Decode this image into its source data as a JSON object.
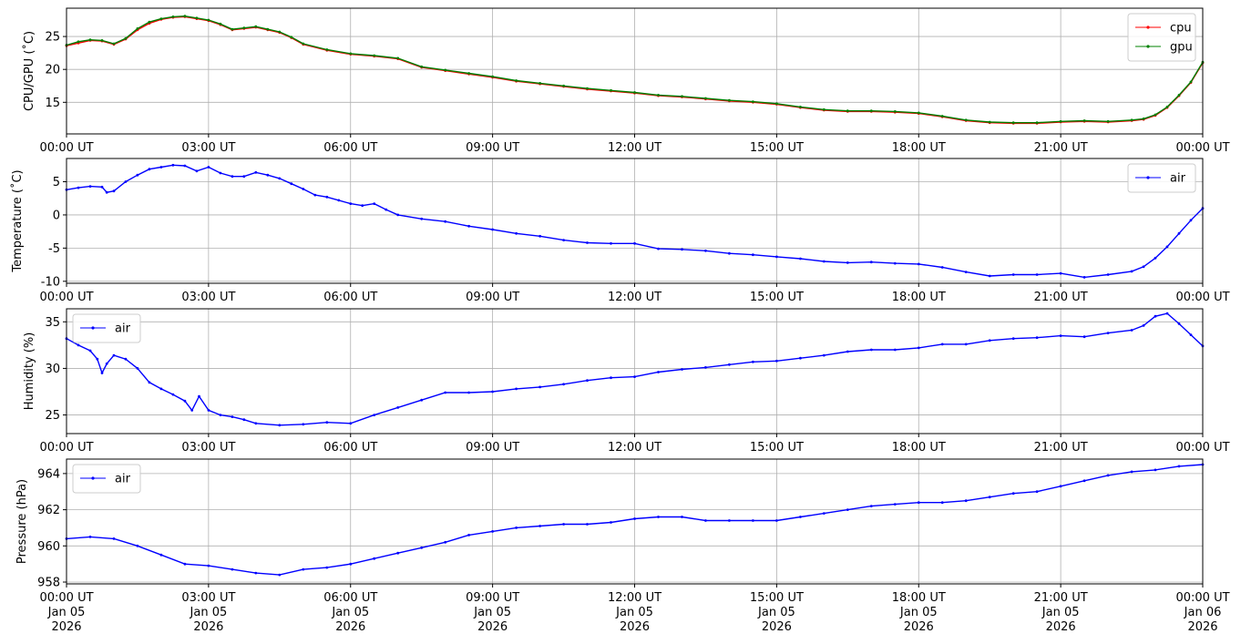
{
  "x_ticks": [
    "00:00 UT",
    "03:00 UT",
    "06:00 UT",
    "09:00 UT",
    "12:00 UT",
    "15:00 UT",
    "18:00 UT",
    "21:00 UT",
    "00:00 UT"
  ],
  "x_ticks_dates": [
    "Jan 05",
    "Jan 05",
    "Jan 05",
    "Jan 05",
    "Jan 05",
    "Jan 05",
    "Jan 05",
    "Jan 05",
    "Jan 06"
  ],
  "x_ticks_years": [
    "2026",
    "2026",
    "2026",
    "2026",
    "2026",
    "2026",
    "2026",
    "2026",
    "2026"
  ],
  "colors": {
    "cpu": "#ff0000",
    "gpu": "#008000",
    "air": "#0000ff",
    "grid": "#b0b0b0"
  },
  "chart_data": [
    {
      "type": "line",
      "xlabel": "",
      "ylabel": "CPU/GPU (˚C)",
      "x_range_hours": [
        0,
        24
      ],
      "ylim": [
        10.2,
        29.3
      ],
      "yticks": [
        15,
        20,
        25
      ],
      "grid": true,
      "legend": "top-right",
      "series": [
        {
          "name": "cpu",
          "color": "#ff0000",
          "x": [
            0,
            0.25,
            0.5,
            0.75,
            1.0,
            1.25,
            1.5,
            1.75,
            2.0,
            2.25,
            2.5,
            2.75,
            3.0,
            3.25,
            3.5,
            3.75,
            4.0,
            4.25,
            4.5,
            4.75,
            5.0,
            5.5,
            6.0,
            6.5,
            7.0,
            7.5,
            8.0,
            8.5,
            9.0,
            9.5,
            10.0,
            10.5,
            11.0,
            11.5,
            12.0,
            12.5,
            13.0,
            13.5,
            14.0,
            14.5,
            15.0,
            15.5,
            16.0,
            16.5,
            17.0,
            17.5,
            18.0,
            18.5,
            19.0,
            19.5,
            20.0,
            20.5,
            21.0,
            21.5,
            22.0,
            22.5,
            22.75,
            23.0,
            23.25,
            23.5,
            23.75,
            24.0
          ],
          "values": [
            23.6,
            24.0,
            24.4,
            24.3,
            23.8,
            24.6,
            26.0,
            27.0,
            27.6,
            27.9,
            28.0,
            27.7,
            27.4,
            26.8,
            26.0,
            26.2,
            26.4,
            26.0,
            25.6,
            24.8,
            23.8,
            22.9,
            22.3,
            22.0,
            21.6,
            20.3,
            19.8,
            19.3,
            18.8,
            18.2,
            17.8,
            17.4,
            17.0,
            16.7,
            16.4,
            16.0,
            15.8,
            15.5,
            15.2,
            15.0,
            14.7,
            14.2,
            13.8,
            13.6,
            13.6,
            13.5,
            13.3,
            12.8,
            12.2,
            11.9,
            11.8,
            11.8,
            12.0,
            12.1,
            12.0,
            12.2,
            12.4,
            13.0,
            14.2,
            16.0,
            18.0,
            21.0
          ]
        },
        {
          "name": "gpu",
          "color": "#008000",
          "x": [
            0,
            0.25,
            0.5,
            0.75,
            1.0,
            1.25,
            1.5,
            1.75,
            2.0,
            2.25,
            2.5,
            2.75,
            3.0,
            3.25,
            3.5,
            3.75,
            4.0,
            4.25,
            4.5,
            4.75,
            5.0,
            5.5,
            6.0,
            6.5,
            7.0,
            7.5,
            8.0,
            8.5,
            9.0,
            9.5,
            10.0,
            10.5,
            11.0,
            11.5,
            12.0,
            12.5,
            13.0,
            13.5,
            14.0,
            14.5,
            15.0,
            15.5,
            16.0,
            16.5,
            17.0,
            17.5,
            18.0,
            18.5,
            19.0,
            19.5,
            20.0,
            20.5,
            21.0,
            21.5,
            22.0,
            22.5,
            22.75,
            23.0,
            23.25,
            23.5,
            23.75,
            24.0
          ],
          "values": [
            23.7,
            24.2,
            24.5,
            24.4,
            23.9,
            24.7,
            26.2,
            27.2,
            27.7,
            28.0,
            28.1,
            27.8,
            27.5,
            26.9,
            26.1,
            26.3,
            26.5,
            26.1,
            25.7,
            24.9,
            23.9,
            23.0,
            22.4,
            22.1,
            21.7,
            20.4,
            19.9,
            19.4,
            18.9,
            18.3,
            17.9,
            17.5,
            17.1,
            16.8,
            16.5,
            16.1,
            15.9,
            15.6,
            15.3,
            15.1,
            14.8,
            14.3,
            13.9,
            13.7,
            13.7,
            13.6,
            13.4,
            12.9,
            12.3,
            12.0,
            11.9,
            11.9,
            12.1,
            12.2,
            12.1,
            12.3,
            12.5,
            13.1,
            14.3,
            16.1,
            18.1,
            21.1
          ]
        }
      ]
    },
    {
      "type": "line",
      "xlabel": "",
      "ylabel": "Temperature (˚C)",
      "x_range_hours": [
        0,
        24
      ],
      "ylim": [
        -10.3,
        8.5
      ],
      "yticks": [
        -10,
        -5,
        0,
        5
      ],
      "grid": true,
      "legend": "top-right",
      "series": [
        {
          "name": "air",
          "color": "#0000ff",
          "x": [
            0,
            0.25,
            0.5,
            0.75,
            0.85,
            1.0,
            1.25,
            1.5,
            1.75,
            2.0,
            2.25,
            2.5,
            2.75,
            3.0,
            3.25,
            3.5,
            3.75,
            4.0,
            4.25,
            4.5,
            4.75,
            5.0,
            5.25,
            5.5,
            5.75,
            6.0,
            6.25,
            6.5,
            6.75,
            7.0,
            7.5,
            8.0,
            8.5,
            9.0,
            9.5,
            10.0,
            10.5,
            11.0,
            11.5,
            12.0,
            12.5,
            13.0,
            13.5,
            14.0,
            14.5,
            15.0,
            15.5,
            16.0,
            16.5,
            17.0,
            17.5,
            18.0,
            18.5,
            19.0,
            19.5,
            20.0,
            20.5,
            21.0,
            21.5,
            22.0,
            22.5,
            22.75,
            23.0,
            23.25,
            23.5,
            23.75,
            24.0
          ],
          "values": [
            3.8,
            4.1,
            4.3,
            4.2,
            3.4,
            3.6,
            5.0,
            6.0,
            6.9,
            7.2,
            7.5,
            7.4,
            6.6,
            7.2,
            6.3,
            5.8,
            5.8,
            6.4,
            6.0,
            5.5,
            4.7,
            3.9,
            3.0,
            2.7,
            2.2,
            1.7,
            1.4,
            1.7,
            0.8,
            0.0,
            -0.6,
            -1.0,
            -1.7,
            -2.2,
            -2.8,
            -3.2,
            -3.8,
            -4.2,
            -4.3,
            -4.3,
            -5.1,
            -5.2,
            -5.4,
            -5.8,
            -6.0,
            -6.3,
            -6.6,
            -7.0,
            -7.2,
            -7.1,
            -7.3,
            -7.4,
            -7.9,
            -8.6,
            -9.2,
            -9.0,
            -9.0,
            -8.8,
            -9.4,
            -9.0,
            -8.5,
            -7.8,
            -6.5,
            -4.8,
            -2.8,
            -0.8,
            1.0
          ]
        }
      ]
    },
    {
      "type": "line",
      "xlabel": "",
      "ylabel": "Humidity (%)",
      "x_range_hours": [
        0,
        24
      ],
      "ylim": [
        23.0,
        36.4
      ],
      "yticks": [
        25,
        30,
        35
      ],
      "grid": true,
      "legend": "top-left",
      "series": [
        {
          "name": "air",
          "color": "#0000ff",
          "x": [
            0,
            0.25,
            0.5,
            0.65,
            0.75,
            0.85,
            1.0,
            1.25,
            1.5,
            1.75,
            2.0,
            2.25,
            2.5,
            2.65,
            2.8,
            3.0,
            3.25,
            3.5,
            3.75,
            4.0,
            4.5,
            5.0,
            5.5,
            6.0,
            6.5,
            7.0,
            7.5,
            8.0,
            8.5,
            9.0,
            9.5,
            10.0,
            10.5,
            11.0,
            11.5,
            12.0,
            12.5,
            13.0,
            13.5,
            14.0,
            14.5,
            15.0,
            15.5,
            16.0,
            16.5,
            17.0,
            17.5,
            18.0,
            18.5,
            19.0,
            19.5,
            20.0,
            20.5,
            21.0,
            21.5,
            22.0,
            22.5,
            22.75,
            23.0,
            23.25,
            23.5,
            23.75,
            24.0
          ],
          "values": [
            33.2,
            32.5,
            31.9,
            31.0,
            29.5,
            30.5,
            31.4,
            31.0,
            30.0,
            28.5,
            27.8,
            27.2,
            26.5,
            25.5,
            27.0,
            25.5,
            25.0,
            24.8,
            24.5,
            24.1,
            23.9,
            24.0,
            24.2,
            24.1,
            25.0,
            25.8,
            26.6,
            27.4,
            27.4,
            27.5,
            27.8,
            28.0,
            28.3,
            28.7,
            29.0,
            29.1,
            29.6,
            29.9,
            30.1,
            30.4,
            30.7,
            30.8,
            31.1,
            31.4,
            31.8,
            32.0,
            32.0,
            32.2,
            32.6,
            32.6,
            33.0,
            33.2,
            33.3,
            33.5,
            33.4,
            33.8,
            34.1,
            34.6,
            35.6,
            35.9,
            34.8,
            33.6,
            32.4
          ]
        }
      ]
    },
    {
      "type": "line",
      "xlabel": "",
      "ylabel": "Pressure (hPa)",
      "x_range_hours": [
        0,
        24
      ],
      "ylim": [
        957.9,
        964.8
      ],
      "yticks": [
        958,
        960,
        962,
        964
      ],
      "grid": true,
      "legend": "top-left",
      "series": [
        {
          "name": "air",
          "color": "#0000ff",
          "x": [
            0,
            0.5,
            1.0,
            1.5,
            2.0,
            2.5,
            3.0,
            3.5,
            4.0,
            4.5,
            5.0,
            5.5,
            6.0,
            6.5,
            7.0,
            7.5,
            8.0,
            8.5,
            9.0,
            9.5,
            10.0,
            10.5,
            11.0,
            11.5,
            12.0,
            12.5,
            13.0,
            13.5,
            14.0,
            14.5,
            15.0,
            15.5,
            16.0,
            16.5,
            17.0,
            17.5,
            18.0,
            18.5,
            19.0,
            19.5,
            20.0,
            20.5,
            21.0,
            21.5,
            22.0,
            22.5,
            23.0,
            23.5,
            24.0
          ],
          "values": [
            960.4,
            960.5,
            960.4,
            960.0,
            959.5,
            959.0,
            958.9,
            958.7,
            958.5,
            958.4,
            958.7,
            958.8,
            959.0,
            959.3,
            959.6,
            959.9,
            960.2,
            960.6,
            960.8,
            961.0,
            961.1,
            961.2,
            961.2,
            961.3,
            961.5,
            961.6,
            961.6,
            961.4,
            961.4,
            961.4,
            961.4,
            961.6,
            961.8,
            962.0,
            962.2,
            962.3,
            962.4,
            962.4,
            962.5,
            962.7,
            962.9,
            963.0,
            963.3,
            963.6,
            963.9,
            964.1,
            964.2,
            964.4,
            964.5
          ]
        }
      ]
    }
  ]
}
